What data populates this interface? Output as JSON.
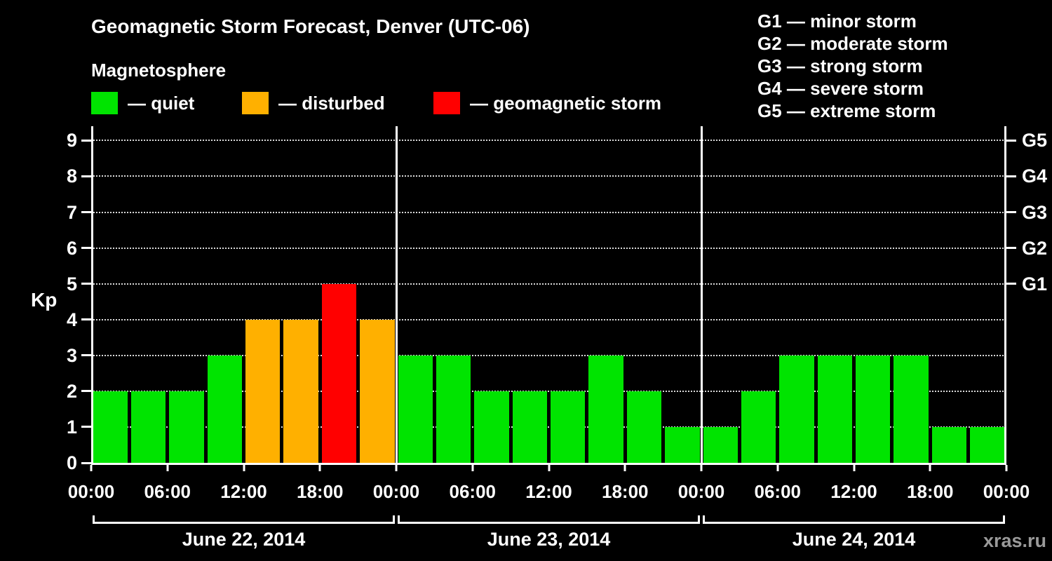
{
  "header": {
    "title": "Geomagnetic Storm Forecast, Denver (UTC-06)",
    "legend_title": "Magnetosphere",
    "legend": [
      {
        "key": "quiet",
        "label": "— quiet"
      },
      {
        "key": "disturbed",
        "label": "— disturbed"
      },
      {
        "key": "storm",
        "label": "— geomagnetic storm"
      }
    ],
    "gscale": [
      "G1 — minor storm",
      "G2 — moderate storm",
      "G3 — strong storm",
      "G4 — severe storm",
      "G5 — extreme storm"
    ]
  },
  "watermark": "xras.ru",
  "chart_data": {
    "type": "bar",
    "title": "Geomagnetic Storm Forecast, Denver (UTC-06)",
    "ylabel": "Kp",
    "ylim": [
      0,
      9.4
    ],
    "yticks": [
      0,
      1,
      2,
      3,
      4,
      5,
      6,
      7,
      8,
      9
    ],
    "right_axis": [
      {
        "label": "G1",
        "value": 5
      },
      {
        "label": "G2",
        "value": 6
      },
      {
        "label": "G3",
        "value": 7
      },
      {
        "label": "G4",
        "value": 8
      },
      {
        "label": "G5",
        "value": 9
      }
    ],
    "x_tick_labels": [
      "00:00",
      "06:00",
      "12:00",
      "18:00"
    ],
    "x_end_label": "00:00",
    "interval_hours": 3,
    "grid": "horizontal-dotted",
    "days": [
      {
        "date": "June 22, 2014",
        "values": [
          2,
          2,
          2,
          3,
          4,
          4,
          5,
          4
        ]
      },
      {
        "date": "June 23, 2014",
        "values": [
          3,
          3,
          2,
          2,
          2,
          3,
          2,
          1
        ]
      },
      {
        "date": "June 24, 2014",
        "values": [
          1,
          2,
          3,
          3,
          3,
          3,
          1,
          1
        ]
      }
    ],
    "colors": {
      "quiet": "#00e400",
      "disturbed": "#ffb000",
      "storm": "#ff0000"
    },
    "color_rules": {
      "quiet_max": 3,
      "disturbed_max": 4
    }
  }
}
